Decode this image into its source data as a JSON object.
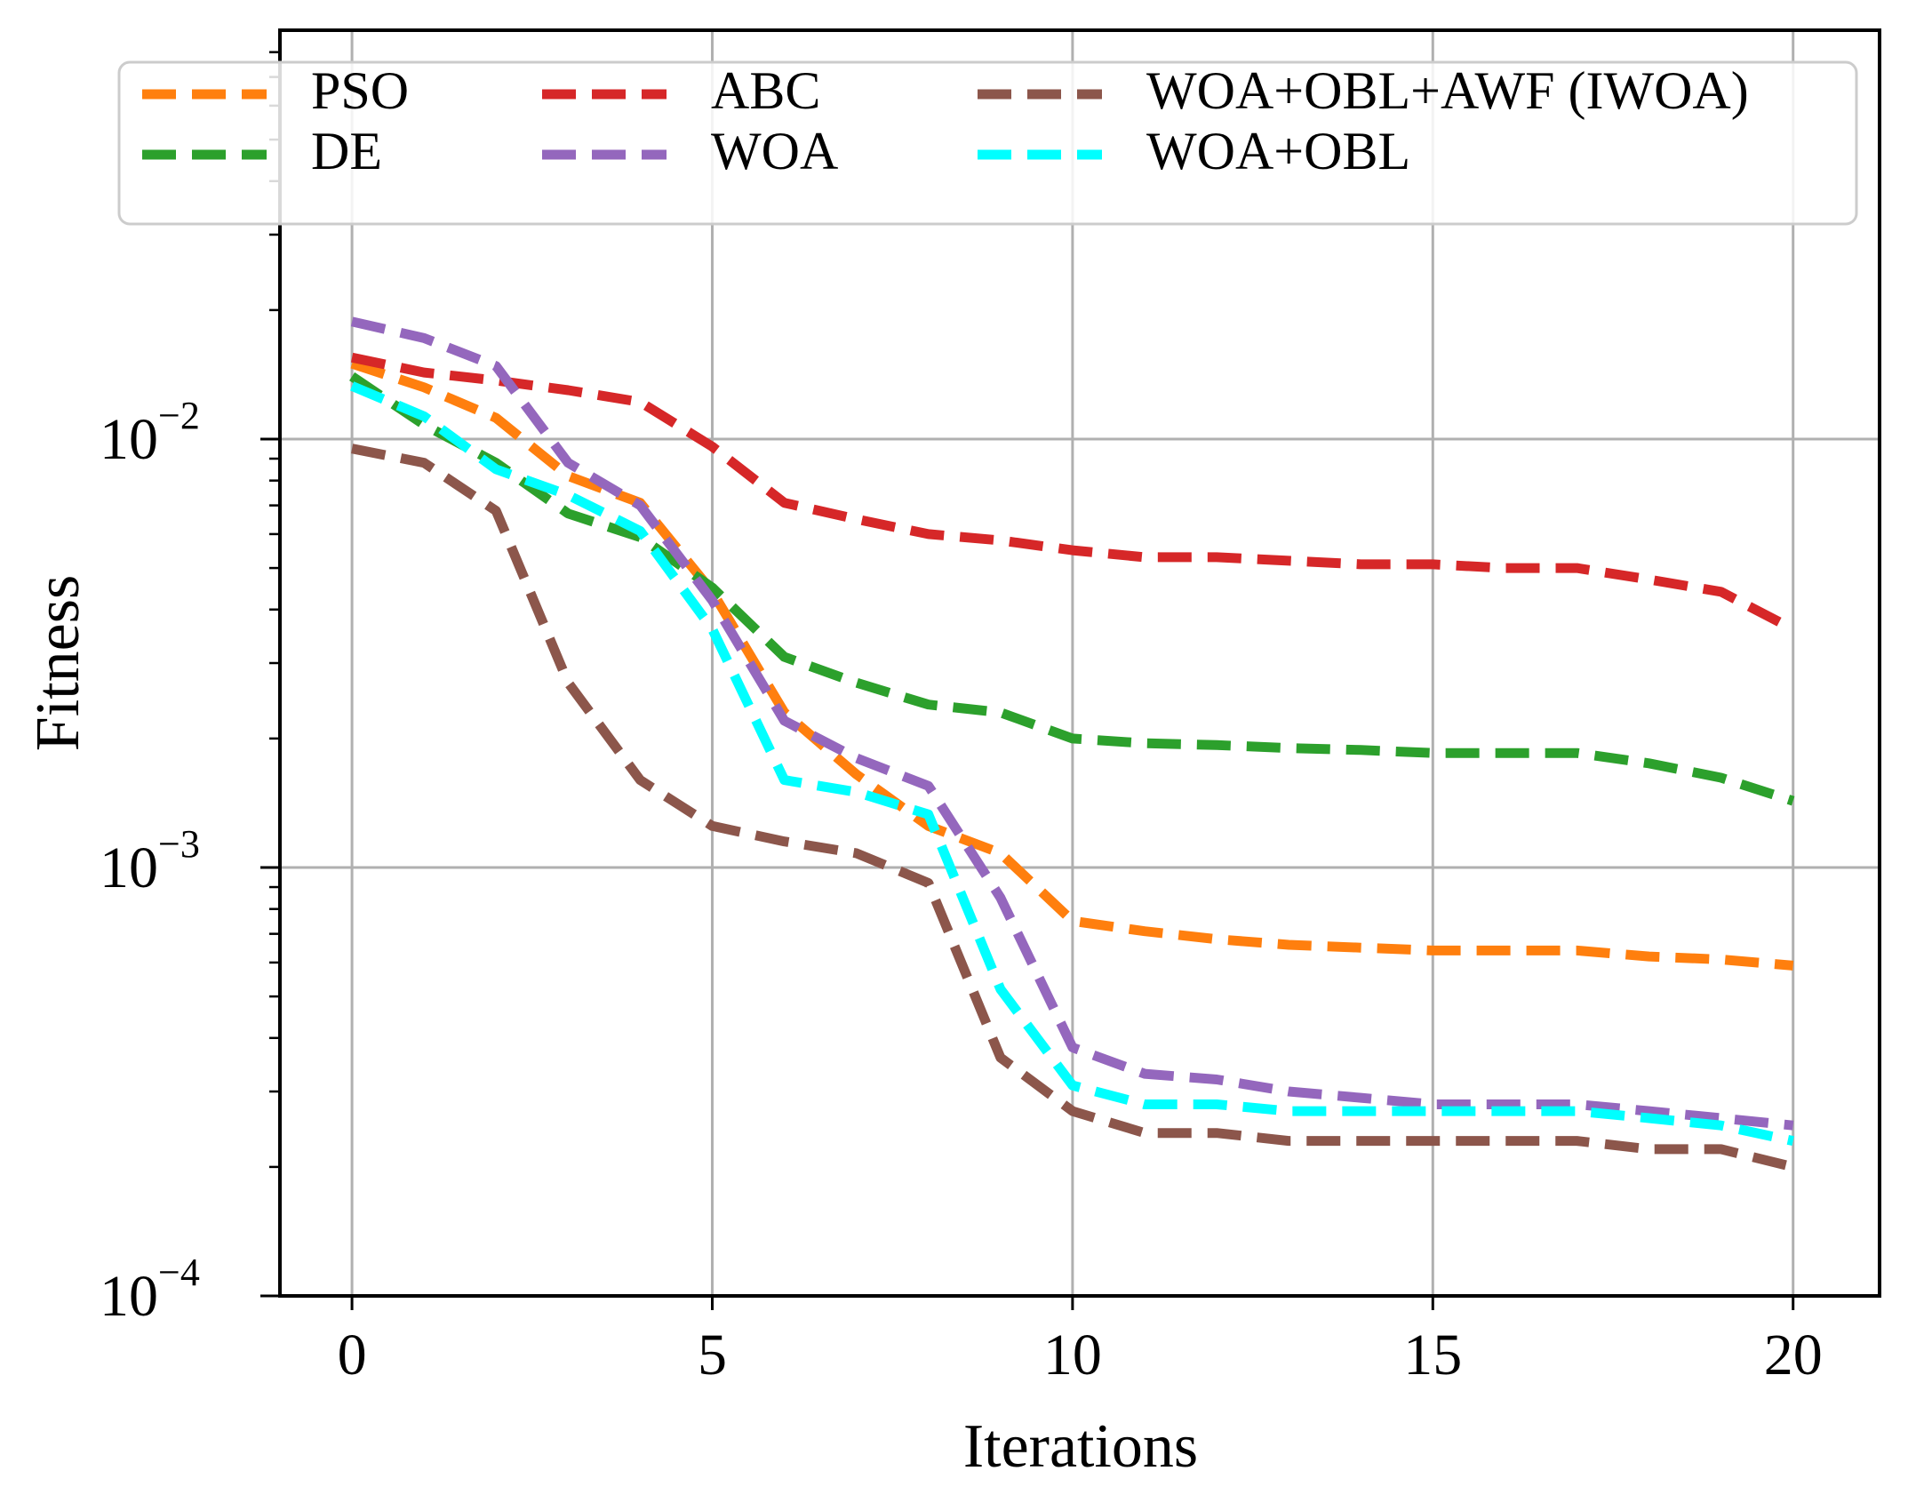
{
  "chart_data": {
    "type": "line",
    "title": "",
    "xlabel": "Iterations",
    "ylabel": "Fitness",
    "xscale": "linear",
    "yscale": "log",
    "xlim": [
      -1,
      21.2
    ],
    "ylim": [
      0.0001,
      0.09
    ],
    "grid": true,
    "legend_position": "top",
    "x_ticks": [
      {
        "value": 0,
        "label": "0"
      },
      {
        "value": 5,
        "label": "5"
      },
      {
        "value": 10,
        "label": "10"
      },
      {
        "value": 15,
        "label": "15"
      },
      {
        "value": 20,
        "label": "20"
      }
    ],
    "y_ticks": [
      {
        "value": 0.0001,
        "base": "10",
        "exp": "−4"
      },
      {
        "value": 0.001,
        "base": "10",
        "exp": "−3"
      },
      {
        "value": 0.01,
        "base": "10",
        "exp": "−2"
      }
    ],
    "x": [
      0,
      1,
      2,
      3,
      4,
      5,
      6,
      7,
      8,
      9,
      10,
      11,
      12,
      13,
      14,
      15,
      16,
      17,
      18,
      19,
      20
    ],
    "series": [
      {
        "name": "PSO",
        "color": "#ff7f0e",
        "values": [
          0.015,
          0.0132,
          0.0112,
          0.0082,
          0.0071,
          0.0044,
          0.0023,
          0.00165,
          0.00125,
          0.00108,
          0.00075,
          0.00071,
          0.00068,
          0.00066,
          0.00065,
          0.00064,
          0.00064,
          0.00064,
          0.00062,
          0.00061,
          0.00059
        ]
      },
      {
        "name": "DE",
        "color": "#2ca02c",
        "values": [
          0.014,
          0.0108,
          0.0088,
          0.0067,
          0.0059,
          0.0045,
          0.0031,
          0.0027,
          0.0024,
          0.0023,
          0.002,
          0.00195,
          0.00193,
          0.0019,
          0.00188,
          0.00185,
          0.00185,
          0.00185,
          0.00175,
          0.00162,
          0.00143
        ]
      },
      {
        "name": "ABC",
        "color": "#d62728",
        "values": [
          0.0155,
          0.0143,
          0.0137,
          0.013,
          0.0122,
          0.0096,
          0.0071,
          0.0065,
          0.006,
          0.0058,
          0.0055,
          0.0053,
          0.0053,
          0.0052,
          0.0051,
          0.0051,
          0.005,
          0.005,
          0.0047,
          0.0044,
          0.0036
        ]
      },
      {
        "name": "WOA",
        "color": "#9467bd",
        "values": [
          0.0188,
          0.0172,
          0.0148,
          0.0088,
          0.007,
          0.0042,
          0.0022,
          0.0018,
          0.00155,
          0.00085,
          0.00038,
          0.00033,
          0.00032,
          0.0003,
          0.00029,
          0.00028,
          0.00028,
          0.00028,
          0.00027,
          0.00026,
          0.00025
        ]
      },
      {
        "name": "WOA+OBL+AWF (IWOA)",
        "color": "#8c564b",
        "values": [
          0.0095,
          0.0088,
          0.0068,
          0.0027,
          0.0016,
          0.00125,
          0.00115,
          0.00108,
          0.00092,
          0.00036,
          0.00027,
          0.00024,
          0.00024,
          0.00023,
          0.00023,
          0.00023,
          0.00023,
          0.00023,
          0.00022,
          0.00022,
          0.0002
        ]
      },
      {
        "name": "WOA+OBL",
        "color": "#00ffff",
        "values": [
          0.0133,
          0.0113,
          0.0085,
          0.0074,
          0.0061,
          0.0036,
          0.0016,
          0.0015,
          0.00133,
          0.00052,
          0.00031,
          0.00028,
          0.00028,
          0.00027,
          0.00027,
          0.00027,
          0.00027,
          0.00027,
          0.00026,
          0.00025,
          0.00023
        ]
      }
    ],
    "legend_order": [
      "PSO",
      "DE",
      "ABC",
      "WOA",
      "WOA+OBL+AWF (IWOA)",
      "WOA+OBL"
    ]
  }
}
